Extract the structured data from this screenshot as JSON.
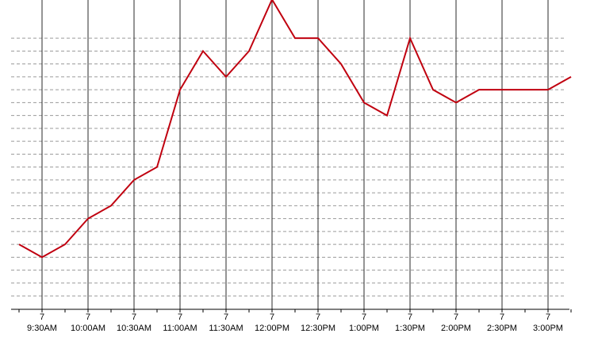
{
  "chart_data": {
    "type": "line",
    "title": "",
    "xlabel": "",
    "ylabel": "",
    "grid": true,
    "x_ticks": [
      {
        "day": "7",
        "time": "9:30AM"
      },
      {
        "day": "7",
        "time": "10:00AM"
      },
      {
        "day": "7",
        "time": "10:30AM"
      },
      {
        "day": "7",
        "time": "11:00AM"
      },
      {
        "day": "7",
        "time": "11:30AM"
      },
      {
        "day": "7",
        "time": "12:00PM"
      },
      {
        "day": "7",
        "time": "12:30PM"
      },
      {
        "day": "7",
        "time": "1:00PM"
      },
      {
        "day": "7",
        "time": "1:30PM"
      },
      {
        "day": "7",
        "time": "2:00PM"
      },
      {
        "day": "7",
        "time": "2:30PM"
      },
      {
        "day": "7",
        "time": "3:00PM"
      }
    ],
    "x_range": [
      "9:00AM",
      "3:15PM"
    ],
    "y_range": [
      0,
      23
    ],
    "series": [
      {
        "color": "#c0000f",
        "x": [
          "9:15AM",
          "9:30AM",
          "9:45AM",
          "10:00AM",
          "10:15AM",
          "10:30AM",
          "10:45AM",
          "11:00AM",
          "11:15AM",
          "11:30AM",
          "11:45AM",
          "12:00PM",
          "12:15PM",
          "12:30PM",
          "12:45PM",
          "1:00PM",
          "1:15PM",
          "1:30PM",
          "1:45PM",
          "2:00PM",
          "2:15PM",
          "2:30PM",
          "2:45PM",
          "3:00PM",
          "3:15PM"
        ],
        "y": [
          4.3,
          3.3,
          4.3,
          6.3,
          7.3,
          9.3,
          10.3,
          16.3,
          19.3,
          17.3,
          19.3,
          23.3,
          20.3,
          20.3,
          18.3,
          15.3,
          14.3,
          20.3,
          16.3,
          15.3,
          16.3,
          16.3,
          16.3,
          16.3,
          17.3
        ]
      }
    ]
  }
}
